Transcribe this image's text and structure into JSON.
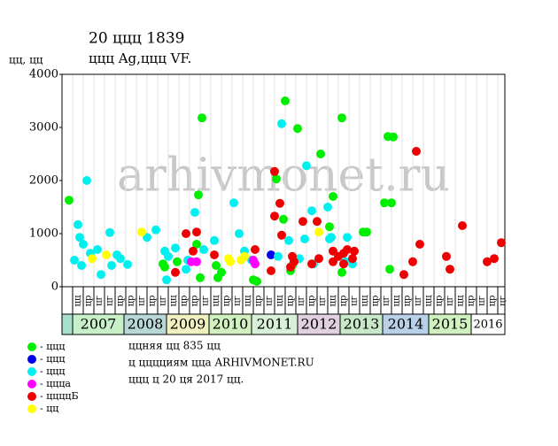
{
  "chart_data": {
    "type": "scatter",
    "title": "20 ццц 1839",
    "subtitle": "ццц Ag,ццц VF.",
    "y_label": "цц, цц",
    "watermark": "arhivmonet.ru",
    "xlim": [
      0,
      500
    ],
    "ylim": [
      0,
      4000
    ],
    "yticks": [
      0,
      1000,
      2000,
      3000,
      4000
    ],
    "grid": true,
    "x_labels": [
      "цц",
      "цр",
      "цг",
      "цг",
      "цр",
      "цр",
      "цг",
      "цр",
      "цг",
      "цц",
      "цр",
      "цр",
      "цг",
      "цц",
      "цр",
      "цг",
      "цц",
      "цр",
      "цг",
      "цц",
      "цр",
      "цг",
      "цр",
      "цг",
      "цц",
      "цр",
      "цг",
      "цц",
      "цр",
      "цг",
      "цц",
      "цр",
      "цг",
      "цц",
      "цр",
      "цг",
      "цц",
      "цр",
      "цг",
      "цр",
      "цг"
    ],
    "years": [
      {
        "label": "2007",
        "from": 12,
        "to": 70,
        "color": "#c8f0c8"
      },
      {
        "label": "2008",
        "from": 70,
        "to": 118,
        "color": "#b8d8d8"
      },
      {
        "label": "2009",
        "from": 118,
        "to": 166,
        "color": "#f0f0c0"
      },
      {
        "label": "2010",
        "from": 166,
        "to": 214,
        "color": "#d0f0c0"
      },
      {
        "label": "2011",
        "from": 214,
        "to": 266,
        "color": "#d8f0d8"
      },
      {
        "label": "2012",
        "from": 266,
        "to": 314,
        "color": "#e0d0e0"
      },
      {
        "label": "2013",
        "from": 314,
        "to": 362,
        "color": "#c8e8c8"
      },
      {
        "label": "2014",
        "from": 362,
        "to": 414,
        "color": "#b8d0e8"
      },
      {
        "label": "2015",
        "from": 414,
        "to": 462,
        "color": "#d0f0c0"
      },
      {
        "label": "2016",
        "from": 462,
        "to": 500,
        "color": "#ffffff"
      }
    ],
    "series": [
      {
        "name": "- ццц",
        "color": "#00ee00",
        "x": [
          8,
          158,
          154,
          252,
          266,
          242,
          250,
          292,
          316,
          306,
          302,
          340,
          344,
          364,
          372,
          368,
          374,
          370,
          316,
          156,
          176,
          174,
          180,
          216,
          220,
          130,
          152,
          116,
          114,
          260,
          258
        ],
        "values": [
          1630,
          3180,
          1730,
          3500,
          2980,
          2030,
          1270,
          2500,
          3180,
          1700,
          1130,
          1030,
          1030,
          1580,
          1580,
          2830,
          2820,
          330,
          270,
          170,
          170,
          400,
          270,
          130,
          100,
          470,
          800,
          370,
          430,
          400,
          300
        ]
      },
      {
        "name": "- ццц",
        "color": "#0000ee",
        "x": [
          236
        ],
        "values": [
          600
        ]
      },
      {
        "name": "- ццц",
        "color": "#00f0f0",
        "x": [
          28,
          18,
          20,
          24,
          14,
          22,
          32,
          40,
          44,
          54,
          56,
          62,
          66,
          74,
          96,
          106,
          116,
          120,
          118,
          128,
          142,
          140,
          150,
          160,
          172,
          194,
          200,
          206,
          214,
          248,
          276,
          282,
          300,
          304,
          302,
          322,
          256,
          274,
          244,
          268,
          284,
          328,
          320
        ],
        "values": [
          2000,
          1170,
          930,
          800,
          500,
          400,
          630,
          700,
          230,
          1020,
          400,
          600,
          530,
          420,
          930,
          1070,
          670,
          570,
          130,
          730,
          500,
          330,
          1400,
          700,
          870,
          1580,
          1000,
          670,
          500,
          3070,
          2280,
          1430,
          1500,
          930,
          900,
          930,
          870,
          900,
          570,
          530,
          430,
          430,
          470
        ]
      },
      {
        "name": "- ццца",
        "color": "#ff00ff",
        "x": [
          146,
          152,
          218,
          216
        ],
        "values": [
          470,
          470,
          430,
          500
        ]
      },
      {
        "name": "- ццццБ",
        "color": "#ee0000",
        "x": [
          128,
          140,
          152,
          148,
          172,
          218,
          240,
          240,
          246,
          248,
          260,
          262,
          258,
          236,
          272,
          282,
          288,
          290,
          306,
          306,
          312,
          318,
          322,
          328,
          330,
          318,
          400,
          404,
          396,
          386,
          434,
          438,
          452,
          480,
          488,
          496
        ],
        "values": [
          270,
          1000,
          1030,
          670,
          600,
          700,
          2170,
          1330,
          1570,
          970,
          570,
          470,
          370,
          300,
          1230,
          430,
          1230,
          530,
          670,
          470,
          570,
          630,
          700,
          530,
          670,
          430,
          2550,
          800,
          470,
          230,
          570,
          330,
          1150,
          470,
          530,
          830
        ]
      },
      {
        "name": "- цц",
        "color": "#ffff00",
        "x": [
          34,
          50,
          90,
          188,
          190,
          202,
          206,
          290
        ],
        "values": [
          530,
          600,
          1030,
          530,
          470,
          500,
          570,
          1030
        ]
      }
    ],
    "notes": [
      "ццняя цц 835 цц",
      "ц цццциям цца ARHIVMONET.RU",
      "ццц ц 20 ця 2017 цц."
    ]
  }
}
